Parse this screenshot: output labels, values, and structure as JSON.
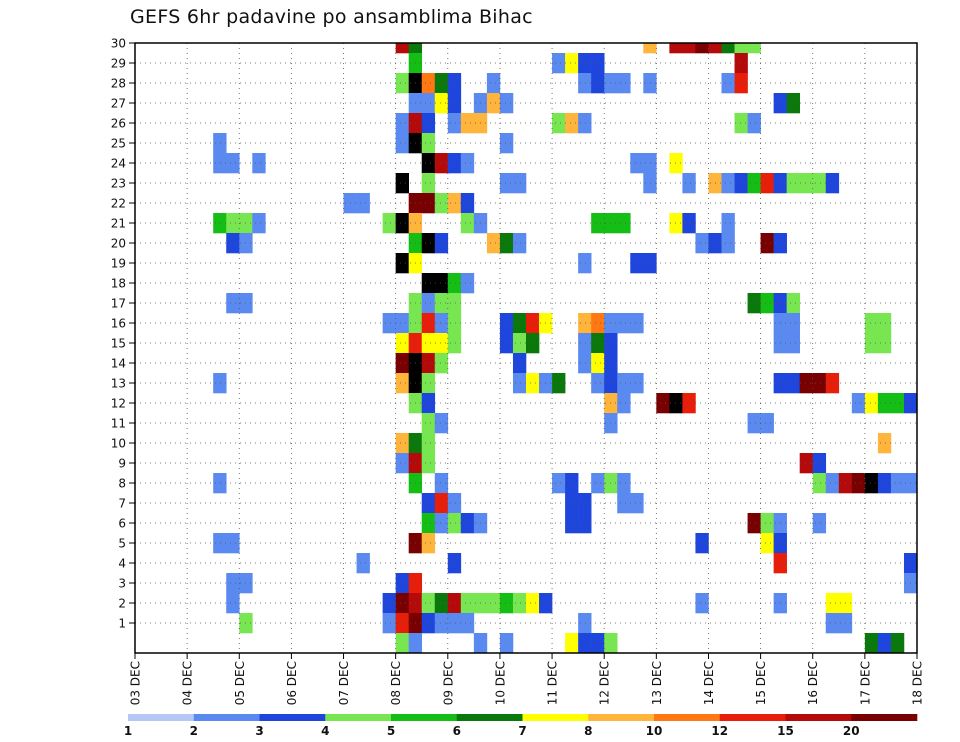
{
  "chart_data": {
    "type": "heatmap",
    "title": "GEFS 6hr padavine po ansamblima Bihac",
    "xlabel": "",
    "ylabel": "",
    "y_ticks": [
      1,
      2,
      3,
      4,
      5,
      6,
      7,
      8,
      9,
      10,
      11,
      12,
      13,
      14,
      15,
      16,
      17,
      18,
      19,
      20,
      21,
      22,
      23,
      24,
      25,
      26,
      27,
      28,
      29,
      30
    ],
    "x_ticks": [
      "03 DEC",
      "04 DEC",
      "05 DEC",
      "06 DEC",
      "07 DEC",
      "08 DEC",
      "09 DEC",
      "10 DEC",
      "11 DEC",
      "12 DEC",
      "13 DEC",
      "14 DEC",
      "15 DEC",
      "16 DEC",
      "17 DEC",
      "18 DEC"
    ],
    "x_steps_per_day": 4,
    "grid": true,
    "colorbar": {
      "placement": "bottom",
      "labels": [
        "1",
        "2",
        "3",
        "4",
        "5",
        "6",
        "7",
        "8",
        "10",
        "12",
        "15",
        "20"
      ],
      "colors": [
        "#b4c7f5",
        "#5a8af0",
        "#1e46dc",
        "#78e650",
        "#14be14",
        "#0a780a",
        "#ffff00",
        "#ffb43c",
        "#ff7814",
        "#e61e0a",
        "#b40a0a",
        "#780000"
      ]
    },
    "cells": [
      [
        30,
        20,
        10
      ],
      [
        30,
        21,
        5
      ],
      [
        30,
        39,
        7
      ],
      [
        30,
        41,
        10
      ],
      [
        30,
        42,
        10
      ],
      [
        30,
        43,
        11
      ],
      [
        30,
        44,
        10
      ],
      [
        30,
        45,
        5
      ],
      [
        30,
        46,
        3
      ],
      [
        30,
        47,
        3
      ],
      [
        29,
        21,
        4
      ],
      [
        29,
        32,
        1
      ],
      [
        29,
        33,
        6
      ],
      [
        29,
        34,
        2
      ],
      [
        29,
        35,
        2
      ],
      [
        29,
        46,
        10
      ],
      [
        28,
        20,
        3
      ],
      [
        28,
        21,
        12
      ],
      [
        28,
        22,
        8
      ],
      [
        28,
        23,
        5
      ],
      [
        28,
        24,
        2
      ],
      [
        28,
        27,
        1
      ],
      [
        28,
        34,
        1
      ],
      [
        28,
        35,
        2
      ],
      [
        28,
        36,
        1
      ],
      [
        28,
        37,
        1
      ],
      [
        28,
        39,
        1
      ],
      [
        28,
        45,
        1
      ],
      [
        28,
        46,
        9
      ],
      [
        27,
        21,
        1
      ],
      [
        27,
        22,
        1
      ],
      [
        27,
        23,
        6
      ],
      [
        27,
        24,
        2
      ],
      [
        27,
        26,
        1
      ],
      [
        27,
        27,
        7
      ],
      [
        27,
        28,
        1
      ],
      [
        27,
        49,
        2
      ],
      [
        27,
        50,
        5
      ],
      [
        26,
        20,
        1
      ],
      [
        26,
        21,
        10
      ],
      [
        26,
        22,
        2
      ],
      [
        26,
        24,
        1
      ],
      [
        26,
        25,
        7
      ],
      [
        26,
        26,
        7
      ],
      [
        26,
        32,
        3
      ],
      [
        26,
        33,
        7
      ],
      [
        26,
        34,
        1
      ],
      [
        26,
        46,
        3
      ],
      [
        26,
        47,
        1
      ],
      [
        25,
        6,
        1
      ],
      [
        25,
        20,
        1
      ],
      [
        25,
        21,
        12
      ],
      [
        25,
        22,
        3
      ],
      [
        25,
        28,
        1
      ],
      [
        24,
        6,
        1
      ],
      [
        24,
        7,
        1
      ],
      [
        24,
        9,
        1
      ],
      [
        24,
        22,
        12
      ],
      [
        24,
        23,
        10
      ],
      [
        24,
        24,
        2
      ],
      [
        24,
        25,
        1
      ],
      [
        24,
        38,
        1
      ],
      [
        24,
        39,
        1
      ],
      [
        24,
        41,
        6
      ],
      [
        23,
        20,
        12
      ],
      [
        23,
        22,
        3
      ],
      [
        23,
        28,
        1
      ],
      [
        23,
        29,
        1
      ],
      [
        23,
        39,
        1
      ],
      [
        23,
        42,
        1
      ],
      [
        23,
        44,
        7
      ],
      [
        23,
        45,
        1
      ],
      [
        23,
        46,
        2
      ],
      [
        23,
        47,
        4
      ],
      [
        23,
        48,
        9
      ],
      [
        23,
        49,
        2
      ],
      [
        23,
        50,
        3
      ],
      [
        23,
        51,
        3
      ],
      [
        23,
        52,
        3
      ],
      [
        23,
        53,
        2
      ],
      [
        22,
        16,
        1
      ],
      [
        22,
        17,
        1
      ],
      [
        22,
        21,
        11
      ],
      [
        22,
        22,
        11
      ],
      [
        22,
        23,
        3
      ],
      [
        22,
        24,
        7
      ],
      [
        22,
        25,
        2
      ],
      [
        21,
        6,
        4
      ],
      [
        21,
        7,
        3
      ],
      [
        21,
        8,
        3
      ],
      [
        21,
        9,
        1
      ],
      [
        21,
        19,
        3
      ],
      [
        21,
        20,
        12
      ],
      [
        21,
        21,
        7
      ],
      [
        21,
        25,
        3
      ],
      [
        21,
        26,
        1
      ],
      [
        21,
        35,
        4
      ],
      [
        21,
        36,
        4
      ],
      [
        21,
        37,
        4
      ],
      [
        21,
        41,
        6
      ],
      [
        21,
        42,
        2
      ],
      [
        21,
        45,
        1
      ],
      [
        20,
        7,
        2
      ],
      [
        20,
        8,
        1
      ],
      [
        20,
        21,
        4
      ],
      [
        20,
        22,
        12
      ],
      [
        20,
        23,
        2
      ],
      [
        20,
        27,
        7
      ],
      [
        20,
        28,
        5
      ],
      [
        20,
        29,
        1
      ],
      [
        20,
        43,
        1
      ],
      [
        20,
        44,
        2
      ],
      [
        20,
        45,
        1
      ],
      [
        20,
        48,
        11
      ],
      [
        20,
        49,
        2
      ],
      [
        19,
        20,
        12
      ],
      [
        19,
        21,
        6
      ],
      [
        19,
        34,
        1
      ],
      [
        19,
        38,
        2
      ],
      [
        19,
        39,
        2
      ],
      [
        18,
        22,
        12
      ],
      [
        18,
        23,
        12
      ],
      [
        18,
        24,
        4
      ],
      [
        18,
        25,
        1
      ],
      [
        17,
        7,
        1
      ],
      [
        17,
        8,
        1
      ],
      [
        17,
        21,
        3
      ],
      [
        17,
        22,
        1
      ],
      [
        17,
        23,
        3
      ],
      [
        17,
        24,
        3
      ],
      [
        17,
        47,
        5
      ],
      [
        17,
        48,
        4
      ],
      [
        17,
        49,
        2
      ],
      [
        17,
        50,
        3
      ],
      [
        16,
        19,
        1
      ],
      [
        16,
        20,
        1
      ],
      [
        16,
        21,
        3
      ],
      [
        16,
        22,
        9
      ],
      [
        16,
        23,
        1
      ],
      [
        16,
        24,
        3
      ],
      [
        16,
        28,
        2
      ],
      [
        16,
        29,
        5
      ],
      [
        16,
        30,
        9
      ],
      [
        16,
        31,
        6
      ],
      [
        16,
        34,
        7
      ],
      [
        16,
        35,
        8
      ],
      [
        16,
        36,
        1
      ],
      [
        16,
        37,
        1
      ],
      [
        16,
        38,
        1
      ],
      [
        16,
        49,
        1
      ],
      [
        16,
        50,
        1
      ],
      [
        16,
        56,
        3
      ],
      [
        16,
        57,
        3
      ],
      [
        15,
        20,
        6
      ],
      [
        15,
        21,
        9
      ],
      [
        15,
        22,
        6
      ],
      [
        15,
        23,
        6
      ],
      [
        15,
        24,
        3
      ],
      [
        15,
        28,
        2
      ],
      [
        15,
        29,
        3
      ],
      [
        15,
        30,
        5
      ],
      [
        15,
        34,
        1
      ],
      [
        15,
        35,
        5
      ],
      [
        15,
        36,
        2
      ],
      [
        15,
        49,
        1
      ],
      [
        15,
        50,
        1
      ],
      [
        15,
        56,
        3
      ],
      [
        15,
        57,
        3
      ],
      [
        14,
        20,
        11
      ],
      [
        14,
        21,
        12
      ],
      [
        14,
        22,
        10
      ],
      [
        14,
        23,
        3
      ],
      [
        14,
        29,
        2
      ],
      [
        14,
        34,
        1
      ],
      [
        14,
        35,
        6
      ],
      [
        14,
        36,
        2
      ],
      [
        13,
        6,
        1
      ],
      [
        13,
        20,
        7
      ],
      [
        13,
        21,
        12
      ],
      [
        13,
        22,
        3
      ],
      [
        13,
        29,
        1
      ],
      [
        13,
        30,
        6
      ],
      [
        13,
        31,
        1
      ],
      [
        13,
        32,
        5
      ],
      [
        13,
        35,
        1
      ],
      [
        13,
        36,
        2
      ],
      [
        13,
        37,
        1
      ],
      [
        13,
        38,
        1
      ],
      [
        13,
        49,
        2
      ],
      [
        13,
        50,
        2
      ],
      [
        13,
        51,
        11
      ],
      [
        13,
        52,
        11
      ],
      [
        13,
        53,
        9
      ],
      [
        12,
        21,
        3
      ],
      [
        12,
        22,
        2
      ],
      [
        12,
        36,
        7
      ],
      [
        12,
        37,
        1
      ],
      [
        12,
        40,
        11
      ],
      [
        12,
        41,
        12
      ],
      [
        12,
        42,
        9
      ],
      [
        12,
        55,
        1
      ],
      [
        12,
        56,
        6
      ],
      [
        12,
        57,
        4
      ],
      [
        12,
        58,
        4
      ],
      [
        12,
        59,
        2
      ],
      [
        11,
        22,
        3
      ],
      [
        11,
        23,
        1
      ],
      [
        11,
        36,
        1
      ],
      [
        11,
        47,
        1
      ],
      [
        11,
        48,
        1
      ],
      [
        10,
        20,
        7
      ],
      [
        10,
        21,
        5
      ],
      [
        10,
        22,
        3
      ],
      [
        10,
        57,
        7
      ],
      [
        9,
        20,
        1
      ],
      [
        9,
        21,
        10
      ],
      [
        9,
        22,
        3
      ],
      [
        9,
        51,
        10
      ],
      [
        9,
        52,
        2
      ],
      [
        8,
        6,
        1
      ],
      [
        8,
        21,
        4
      ],
      [
        8,
        23,
        1
      ],
      [
        8,
        32,
        1
      ],
      [
        8,
        33,
        2
      ],
      [
        8,
        35,
        1
      ],
      [
        8,
        36,
        3
      ],
      [
        8,
        37,
        1
      ],
      [
        8,
        52,
        3
      ],
      [
        8,
        53,
        1
      ],
      [
        8,
        54,
        10
      ],
      [
        8,
        55,
        11
      ],
      [
        8,
        56,
        12
      ],
      [
        8,
        57,
        2
      ],
      [
        8,
        58,
        1
      ],
      [
        8,
        59,
        1
      ],
      [
        7,
        22,
        2
      ],
      [
        7,
        23,
        9
      ],
      [
        7,
        24,
        1
      ],
      [
        7,
        33,
        2
      ],
      [
        7,
        34,
        2
      ],
      [
        7,
        37,
        1
      ],
      [
        7,
        38,
        1
      ],
      [
        6,
        22,
        4
      ],
      [
        6,
        23,
        1
      ],
      [
        6,
        24,
        3
      ],
      [
        6,
        25,
        2
      ],
      [
        6,
        26,
        1
      ],
      [
        6,
        33,
        2
      ],
      [
        6,
        34,
        2
      ],
      [
        6,
        47,
        11
      ],
      [
        6,
        48,
        3
      ],
      [
        6,
        49,
        1
      ],
      [
        6,
        52,
        1
      ],
      [
        5,
        6,
        1
      ],
      [
        5,
        7,
        1
      ],
      [
        5,
        21,
        11
      ],
      [
        5,
        22,
        7
      ],
      [
        5,
        43,
        2
      ],
      [
        5,
        48,
        6
      ],
      [
        5,
        49,
        2
      ],
      [
        4,
        17,
        1
      ],
      [
        4,
        24,
        2
      ],
      [
        4,
        49,
        9
      ],
      [
        4,
        59,
        2
      ],
      [
        3,
        7,
        1
      ],
      [
        3,
        8,
        1
      ],
      [
        3,
        20,
        2
      ],
      [
        3,
        21,
        9
      ],
      [
        3,
        59,
        1
      ],
      [
        2,
        7,
        1
      ],
      [
        2,
        19,
        2
      ],
      [
        2,
        20,
        11
      ],
      [
        2,
        21,
        10
      ],
      [
        2,
        22,
        3
      ],
      [
        2,
        23,
        5
      ],
      [
        2,
        24,
        10
      ],
      [
        2,
        25,
        3
      ],
      [
        2,
        26,
        3
      ],
      [
        2,
        27,
        3
      ],
      [
        2,
        28,
        4
      ],
      [
        2,
        29,
        3
      ],
      [
        2,
        30,
        6
      ],
      [
        2,
        31,
        2
      ],
      [
        2,
        43,
        1
      ],
      [
        2,
        49,
        1
      ],
      [
        2,
        53,
        6
      ],
      [
        2,
        54,
        6
      ],
      [
        1,
        8,
        3
      ],
      [
        1,
        19,
        1
      ],
      [
        1,
        20,
        9
      ],
      [
        1,
        21,
        11
      ],
      [
        1,
        22,
        2
      ],
      [
        1,
        23,
        1
      ],
      [
        1,
        24,
        1
      ],
      [
        1,
        25,
        1
      ],
      [
        1,
        34,
        1
      ],
      [
        1,
        53,
        1
      ],
      [
        1,
        54,
        1
      ],
      [
        0,
        20,
        3
      ],
      [
        0,
        21,
        1
      ],
      [
        0,
        26,
        1
      ],
      [
        0,
        28,
        1
      ],
      [
        0,
        33,
        6
      ],
      [
        0,
        34,
        2
      ],
      [
        0,
        35,
        2
      ],
      [
        0,
        36,
        3
      ],
      [
        0,
        56,
        5
      ],
      [
        0,
        57,
        2
      ],
      [
        0,
        58,
        5
      ]
    ]
  }
}
